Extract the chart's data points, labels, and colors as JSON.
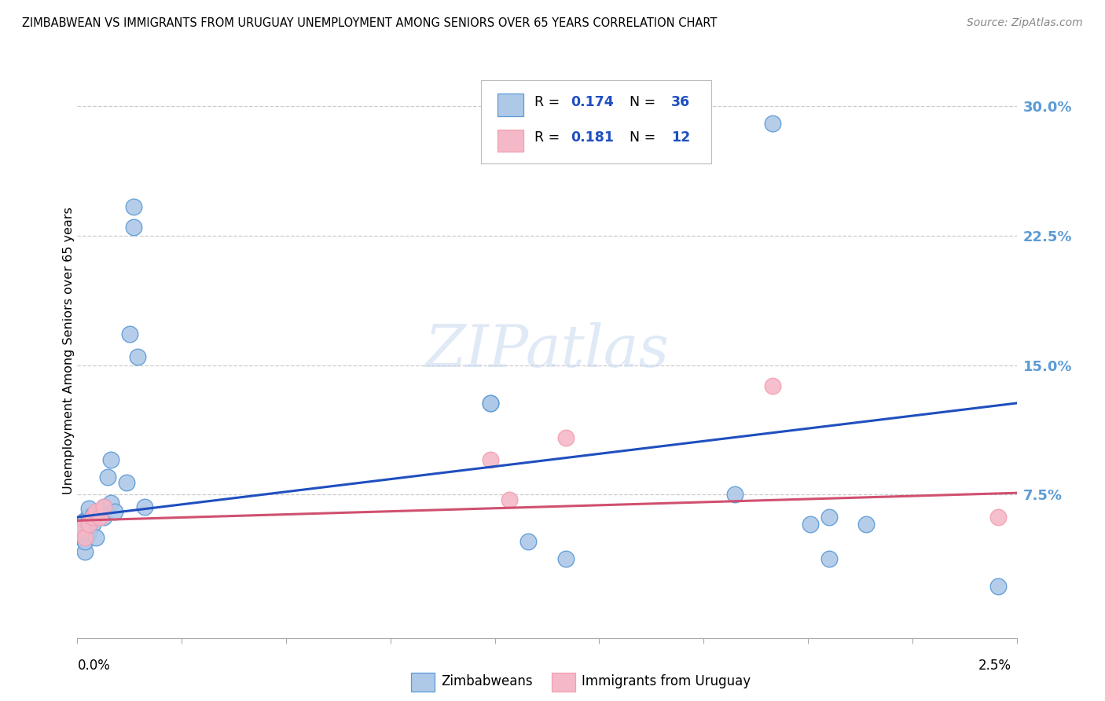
{
  "title": "ZIMBABWEAN VS IMMIGRANTS FROM URUGUAY UNEMPLOYMENT AMONG SENIORS OVER 65 YEARS CORRELATION CHART",
  "source": "Source: ZipAtlas.com",
  "ylabel": "Unemployment Among Seniors over 65 years",
  "right_yticks": [
    0.075,
    0.15,
    0.225,
    0.3
  ],
  "right_yticklabels": [
    "7.5%",
    "15.0%",
    "22.5%",
    "30.0%"
  ],
  "xmin": 0.0,
  "xmax": 0.025,
  "ymin": -0.008,
  "ymax": 0.325,
  "blue_color": "#5b9bd5",
  "pink_color": "#f4a0b0",
  "blue_scatter_fill": "#aec8e8",
  "pink_scatter_fill": "#f4b8c8",
  "trendline_blue": "#1f4fbf",
  "trendline_pink": "#d05070",
  "blue_trend_y0": 0.062,
  "blue_trend_y1": 0.128,
  "pink_trend_y0": 0.06,
  "pink_trend_y1": 0.076,
  "watermark": "ZIPatlas",
  "zimbabweans_x": [
    0.0001,
    0.0001,
    0.0002,
    0.0002,
    0.0002,
    0.0003,
    0.0003,
    0.0003,
    0.0003,
    0.0004,
    0.0004,
    0.0005,
    0.0006,
    0.0007,
    0.0007,
    0.0008,
    0.0009,
    0.0009,
    0.001,
    0.0013,
    0.0014,
    0.0015,
    0.0015,
    0.0016,
    0.0018,
    0.011,
    0.011,
    0.012,
    0.013,
    0.0175,
    0.0185,
    0.0195,
    0.02,
    0.02,
    0.021,
    0.0245
  ],
  "zimbabweans_y": [
    0.05,
    0.056,
    0.042,
    0.048,
    0.06,
    0.053,
    0.058,
    0.063,
    0.067,
    0.058,
    0.063,
    0.05,
    0.065,
    0.062,
    0.068,
    0.085,
    0.07,
    0.095,
    0.065,
    0.082,
    0.168,
    0.242,
    0.23,
    0.155,
    0.068,
    0.128,
    0.128,
    0.048,
    0.038,
    0.075,
    0.29,
    0.058,
    0.062,
    0.038,
    0.058,
    0.022
  ],
  "uruguay_x": [
    0.0001,
    0.0002,
    0.0003,
    0.0004,
    0.0005,
    0.0006,
    0.0007,
    0.011,
    0.0115,
    0.013,
    0.0185,
    0.0245
  ],
  "uruguay_y": [
    0.055,
    0.05,
    0.058,
    0.062,
    0.065,
    0.062,
    0.068,
    0.095,
    0.072,
    0.108,
    0.138,
    0.062
  ]
}
